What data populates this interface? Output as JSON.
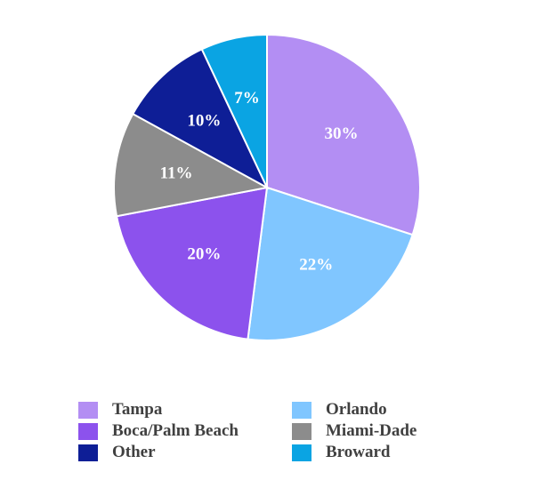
{
  "chart_data": {
    "type": "pie",
    "slices": [
      {
        "name": "Tampa",
        "value": 30,
        "label": "30%",
        "color": "#b38ef3"
      },
      {
        "name": "Orlando",
        "value": 22,
        "label": "22%",
        "color": "#80c6ff"
      },
      {
        "name": "Boca/Palm Beach",
        "value": 20,
        "label": "20%",
        "color": "#8c52ed"
      },
      {
        "name": "Miami-Dade",
        "value": 11,
        "label": "11%",
        "color": "#8c8c8c"
      },
      {
        "name": "Other",
        "value": 10,
        "label": "10%",
        "color": "#0e1e96"
      },
      {
        "name": "Broward",
        "value": 7,
        "label": "7%",
        "color": "#0aa4e3"
      }
    ],
    "legend": {
      "placement": "bottom",
      "order": [
        "Tampa",
        "Orlando",
        "Boca/Palm Beach",
        "Miami-Dade",
        "Other",
        "Broward"
      ]
    }
  }
}
